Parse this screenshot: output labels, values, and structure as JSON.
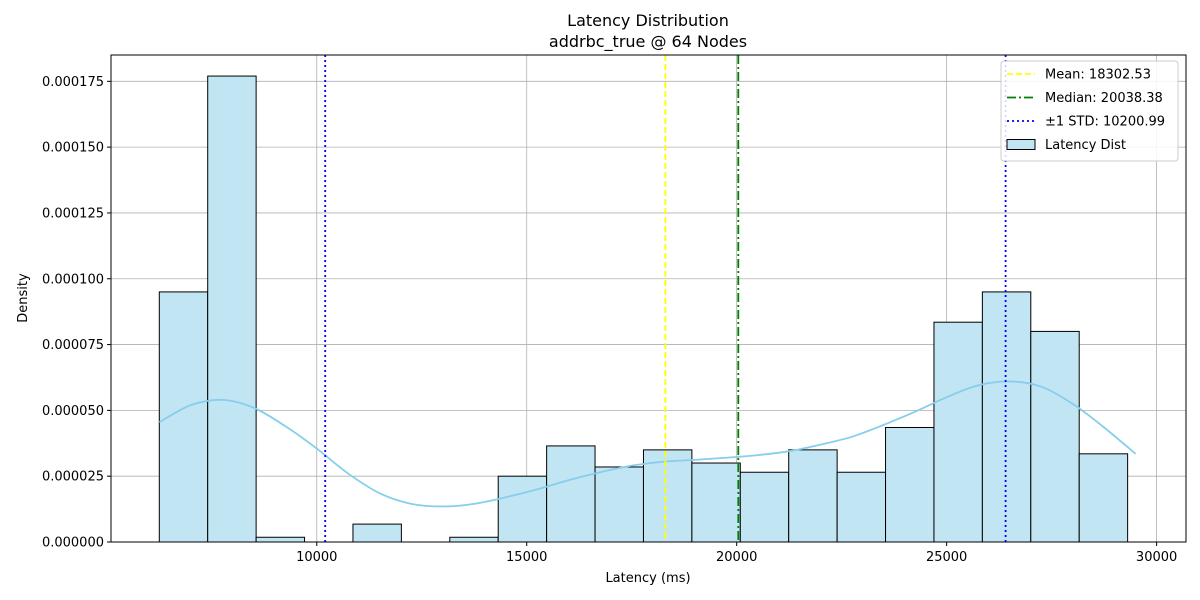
{
  "chart_data": {
    "type": "bar",
    "title": "Latency Distribution",
    "subtitle": "addrbc_true @ 64 Nodes",
    "xlabel": "Latency (ms)",
    "ylabel": "Density",
    "xlim": [
      5100,
      30700
    ],
    "ylim": [
      0,
      0.000185
    ],
    "xticks": [
      10000,
      15000,
      20000,
      25000,
      30000
    ],
    "xtick_labels": [
      "10000",
      "15000",
      "20000",
      "25000",
      "30000"
    ],
    "yticks": [
      0,
      2.5e-05,
      5e-05,
      7.5e-05,
      0.0001,
      0.000125,
      0.00015,
      0.000175
    ],
    "ytick_labels": [
      "0.000000",
      "0.000025",
      "0.000050",
      "0.000075",
      "0.000100",
      "0.000125",
      "0.000150",
      "0.000175"
    ],
    "grid": true,
    "legend_position": "top-right",
    "histogram": {
      "bin_start": 6250,
      "bin_width": 1153,
      "densities": [
        9.5e-05,
        0.000177,
        1.8e-06,
        0,
        6.8e-06,
        0,
        1.8e-06,
        2.5e-05,
        3.65e-05,
        2.85e-05,
        3.5e-05,
        3e-05,
        2.65e-05,
        3.5e-05,
        2.65e-05,
        4.35e-05,
        8.35e-05,
        9.5e-05,
        8e-05,
        3.35e-05
      ],
      "fill_color": "#c2e5f4",
      "edge_color": "#000000"
    },
    "kde": {
      "x": [
        6250,
        7000,
        7750,
        8500,
        9250,
        10000,
        10750,
        11500,
        12250,
        13000,
        13750,
        14500,
        15250,
        16000,
        16750,
        17500,
        18250,
        19000,
        19750,
        20500,
        21250,
        22000,
        22750,
        23500,
        24250,
        25000,
        25750,
        26500,
        27250,
        28000,
        28750,
        29500
      ],
      "y": [
        4.55e-05,
        5.2e-05,
        5.4e-05,
        5.1e-05,
        4.4e-05,
        3.55e-05,
        2.6e-05,
        1.85e-05,
        1.45e-05,
        1.35e-05,
        1.45e-05,
        1.7e-05,
        2e-05,
        2.35e-05,
        2.65e-05,
        2.9e-05,
        3.05e-05,
        3.12e-05,
        3.2e-05,
        3.3e-05,
        3.45e-05,
        3.7e-05,
        4e-05,
        4.45e-05,
        4.95e-05,
        5.5e-05,
        5.95e-05,
        6.1e-05,
        5.9e-05,
        5.25e-05,
        4.35e-05,
        3.35e-05
      ],
      "color": "#87ceeb"
    },
    "reference_lines": [
      {
        "name": "Mean",
        "x": 18302.53,
        "color": "#ffff00",
        "style": "dashed"
      },
      {
        "name": "Median",
        "x": 20038.38,
        "color": "#008000",
        "style": "dashdot"
      },
      {
        "name": "-1 STD",
        "x": 10200.99,
        "color": "#0000ff",
        "style": "dotted"
      },
      {
        "name": "+1 STD",
        "x": 26404.07,
        "color": "#0000ff",
        "style": "dotted"
      }
    ],
    "legend": [
      {
        "label": "Mean: 18302.53",
        "kind": "line",
        "color": "#ffff00",
        "style": "dashed"
      },
      {
        "label": "Median: 20038.38",
        "kind": "line",
        "color": "#008000",
        "style": "dashdot"
      },
      {
        "label": "±1 STD: 10200.99",
        "kind": "line",
        "color": "#0000ff",
        "style": "dotted"
      },
      {
        "label": "Latency Dist",
        "kind": "patch",
        "color": "#c2e5f4"
      }
    ]
  }
}
